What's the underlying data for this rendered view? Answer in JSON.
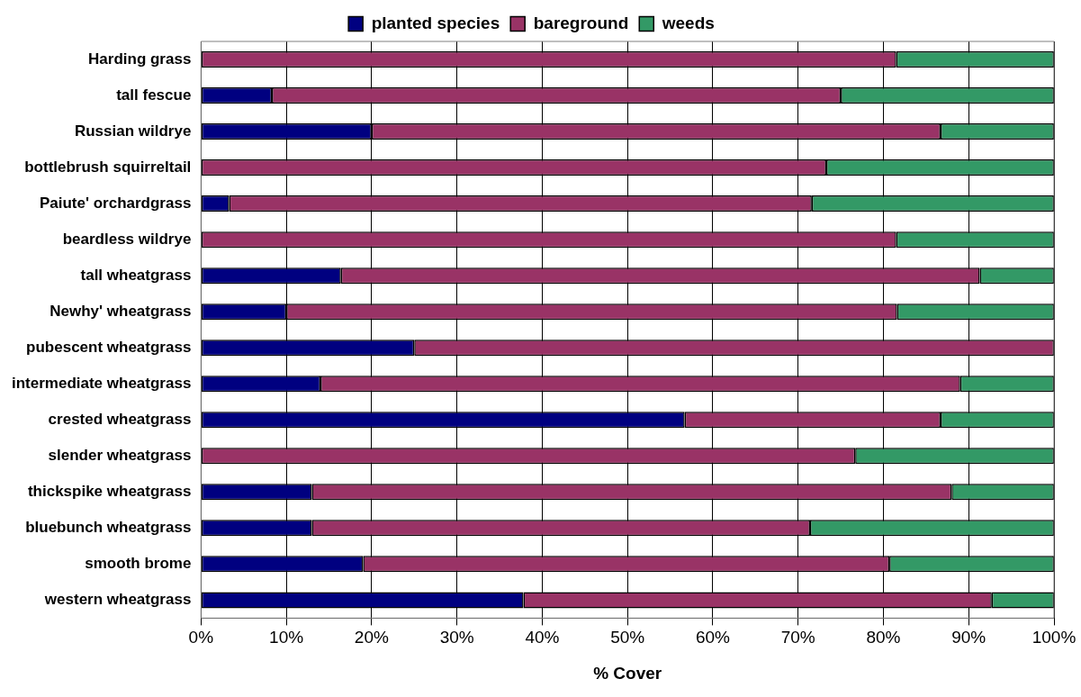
{
  "chart_data": {
    "type": "bar",
    "orientation": "horizontal",
    "stacked": true,
    "xlabel": "% Cover",
    "legend": "top",
    "grid": "x",
    "categories": [
      "Harding grass",
      "tall fescue",
      "Russian wildrye",
      "bottlebrush squirreltail",
      "Paiute' orchardgrass",
      "beardless wildrye",
      "tall wheatgrass",
      "Newhy' wheatgrass",
      "pubescent wheatgrass",
      "intermediate wheatgrass",
      "crested wheatgrass",
      "slender wheatgrass",
      "thickspike wheatgrass",
      "bluebunch wheatgrass",
      "smooth brome",
      "western wheatgrass"
    ],
    "series": [
      {
        "name": "planted species",
        "color": "#000080",
        "values": [
          0,
          8.3,
          20,
          0,
          3.3,
          0,
          16.4,
          10,
          25,
          14,
          56.7,
          0,
          13,
          13,
          19,
          37.8
        ]
      },
      {
        "name": "bareground",
        "color": "#993366",
        "values": [
          81.5,
          66.7,
          66.7,
          73.3,
          68.3,
          81.5,
          74.9,
          71.6,
          75,
          75,
          30,
          76.7,
          75,
          58.4,
          61.7,
          54.9
        ]
      },
      {
        "name": "weeds",
        "color": "#339966",
        "values": [
          18.5,
          25,
          13.3,
          26.7,
          28.4,
          18.5,
          8.7,
          18.4,
          0,
          11,
          13.3,
          23.3,
          12,
          28.6,
          19.3,
          7.3
        ]
      }
    ],
    "xlim": [
      0,
      100
    ],
    "xticks": [
      {
        "value": 0,
        "label": "0%"
      },
      {
        "value": 10,
        "label": "10%"
      },
      {
        "value": 20,
        "label": "20%"
      },
      {
        "value": 30,
        "label": "30%"
      },
      {
        "value": 40,
        "label": "40%"
      },
      {
        "value": 50,
        "label": "50%"
      },
      {
        "value": 60,
        "label": "60%"
      },
      {
        "value": 70,
        "label": "70%"
      },
      {
        "value": 80,
        "label": "80%"
      },
      {
        "value": 90,
        "label": "90%"
      },
      {
        "value": 100,
        "label": "100%"
      }
    ]
  }
}
